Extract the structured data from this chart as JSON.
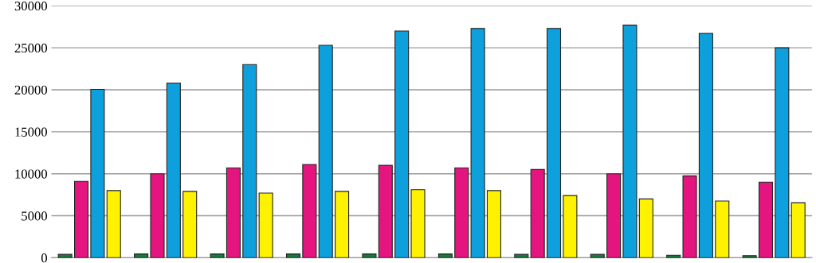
{
  "chart_data": {
    "type": "bar",
    "categories": [
      null,
      null,
      null,
      null,
      null,
      null,
      null,
      null,
      null,
      null
    ],
    "series": [
      {
        "color": "#1a7a3c",
        "values": [
          400,
          450,
          450,
          450,
          450,
          450,
          400,
          400,
          300,
          250
        ]
      },
      {
        "color": "#e4157f",
        "values": [
          9100,
          10000,
          10700,
          11100,
          11000,
          10700,
          10500,
          10000,
          9750,
          9000
        ]
      },
      {
        "color": "#0ea0dc",
        "values": [
          20050,
          20800,
          23000,
          25300,
          27000,
          27300,
          27300,
          27700,
          26700,
          25000
        ]
      },
      {
        "color": "#fff200",
        "values": [
          8000,
          7900,
          7700,
          7900,
          8100,
          8000,
          7400,
          7000,
          6750,
          6550
        ]
      }
    ],
    "ylim": [
      0,
      30000
    ],
    "yticks": [
      0,
      5000,
      10000,
      15000,
      20000,
      25000,
      30000
    ],
    "grid": "y",
    "legend": false
  }
}
